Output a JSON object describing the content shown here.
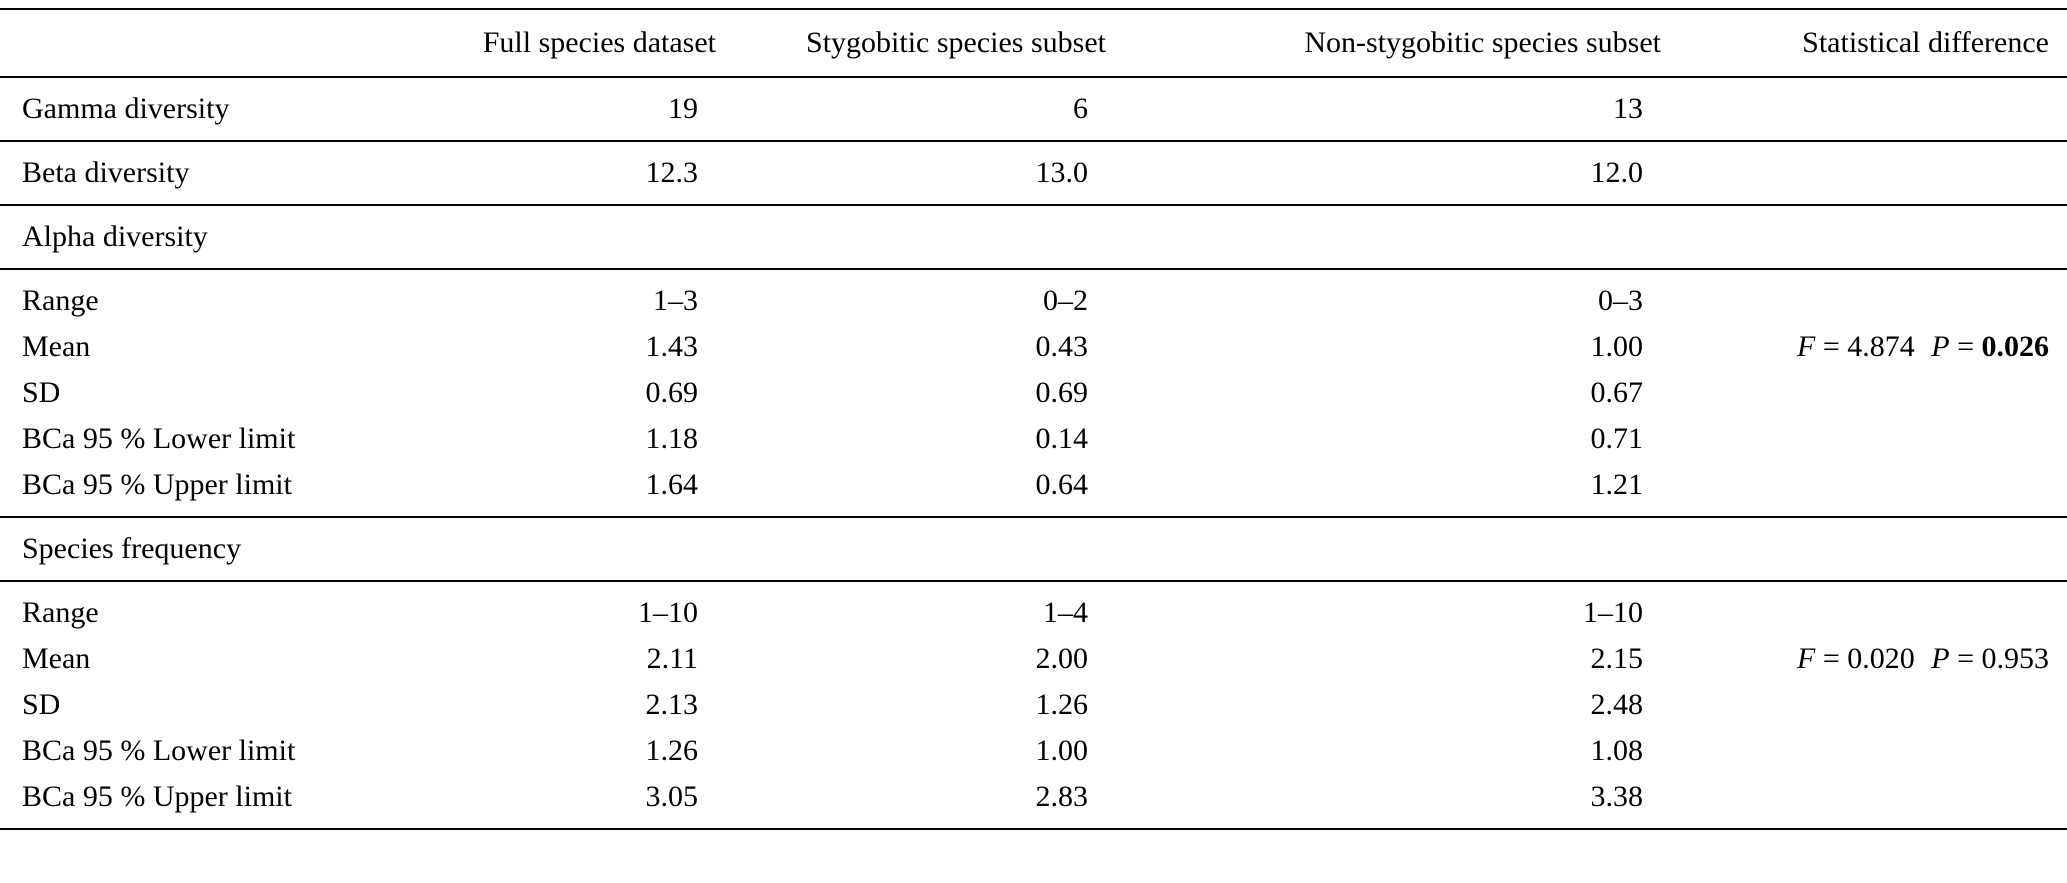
{
  "table": {
    "headers": {
      "col1": "",
      "col2": "Full species dataset",
      "col3": "Stygobitic species subset",
      "col4": "Non-stygobitic species subset",
      "col5": "Statistical difference"
    },
    "rows": [
      {
        "label": "Gamma diversity",
        "full": "19",
        "stygobitic": "6",
        "non_stygobitic": "13"
      },
      {
        "label": "Beta diversity",
        "full": "12.3",
        "stygobitic": "13.0",
        "non_stygobitic": "12.0"
      },
      {
        "label": "Alpha diversity",
        "type": "section"
      },
      {
        "label": "Range",
        "full": "1–3",
        "stygobitic": "0–2",
        "non_stygobitic": "0–3"
      },
      {
        "label": "Mean",
        "full": "1.43",
        "stygobitic": "0.43",
        "non_stygobitic": "1.00"
      },
      {
        "label": "SD",
        "full": "0.69",
        "stygobitic": "0.69",
        "non_stygobitic": "0.67"
      },
      {
        "label": "BCa 95 % Lower limit",
        "full": "1.18",
        "stygobitic": "0.14",
        "non_stygobitic": "0.71"
      },
      {
        "label": "BCa 95 % Upper limit",
        "full": "1.64",
        "stygobitic": "0.64",
        "non_stygobitic": "1.21"
      },
      {
        "label": "Species frequency",
        "type": "section"
      },
      {
        "label": "Range",
        "full": "1–10",
        "stygobitic": "1–4",
        "non_stygobitic": "1–10"
      },
      {
        "label": "Mean",
        "full": "2.11",
        "stygobitic": "2.00",
        "non_stygobitic": "2.15"
      },
      {
        "label": "SD",
        "full": "2.13",
        "stygobitic": "1.26",
        "non_stygobitic": "2.48"
      },
      {
        "label": "BCa 95 % Lower limit",
        "full": "1.26",
        "stygobitic": "1.00",
        "non_stygobitic": "1.08"
      },
      {
        "label": "BCa 95 % Upper limit",
        "full": "3.05",
        "stygobitic": "2.83",
        "non_stygobitic": "3.38"
      }
    ],
    "stats": {
      "alpha": {
        "f_symbol": "F",
        "f_rest": " = 4.874",
        "p_symbol": "P",
        "p_eq": " = ",
        "p_value": "0.026",
        "p_value_bold": true
      },
      "frequency": {
        "f_symbol": "F",
        "f_rest": " = 0.020",
        "p_symbol": "P",
        "p_eq": " = ",
        "p_value": "0.953",
        "p_value_bold": false
      }
    }
  }
}
